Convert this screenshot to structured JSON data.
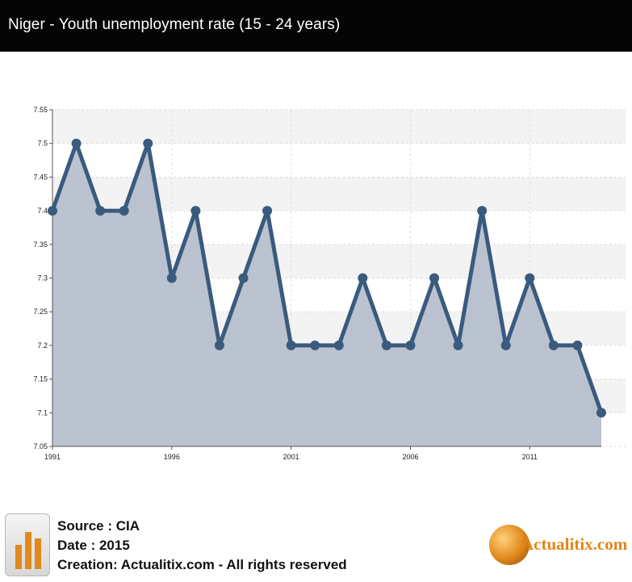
{
  "header": {
    "title": "Niger - Youth unemployment rate (15 - 24 years)"
  },
  "footer": {
    "source": "Source : CIA",
    "date": "Date : 2015",
    "creation": "Creation: Actualitix.com - All rights reserved",
    "brand": "Actualitix.com"
  },
  "colors": {
    "line": "#3a5a7e",
    "area": "#b3bdca",
    "title_bg": "#050505",
    "brand": "#e0861a"
  },
  "chart_data": {
    "type": "area",
    "title": "Niger - Youth unemployment rate (15 - 24 years)",
    "x": [
      1991,
      1992,
      1993,
      1994,
      1995,
      1996,
      1997,
      1998,
      1999,
      2000,
      2001,
      2002,
      2003,
      2004,
      2005,
      2006,
      2007,
      2008,
      2009,
      2010,
      2011,
      2012,
      2013,
      2014
    ],
    "series": [
      {
        "values": [
          7.4,
          7.5,
          7.4,
          7.4,
          7.5,
          7.3,
          7.4,
          7.2,
          7.3,
          7.4,
          7.2,
          7.2,
          7.2,
          7.3,
          7.2,
          7.2,
          7.3,
          7.2,
          7.4,
          7.2,
          7.3,
          7.2,
          7.2,
          7.1
        ]
      }
    ],
    "x_ticks": [
      "1991",
      "1996",
      "2001",
      "2006",
      "2011"
    ],
    "y_ticks": [
      "7.55",
      "7.5",
      "7.45",
      "7.4",
      "7.35",
      "7.3",
      "7.25",
      "7.2",
      "7.15",
      "7.1",
      "7.05"
    ],
    "ylim": [
      7.05,
      7.55
    ],
    "xlim": [
      1991,
      2014
    ],
    "grid": true,
    "legend": "none"
  }
}
